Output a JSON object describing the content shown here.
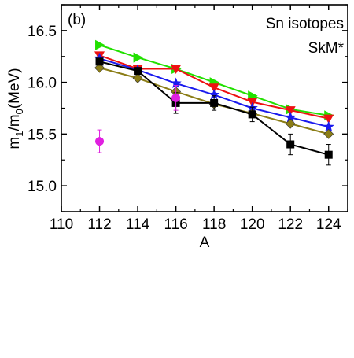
{
  "chart_data": {
    "type": "line",
    "panel_label": "(b)",
    "annotations": [
      "Sn isotopes",
      "SkM*"
    ],
    "xlabel": "A",
    "ylabel_main": "m",
    "ylabel_sub1": "1",
    "ylabel_mid": "/m",
    "ylabel_sub0": "0",
    "ylabel_unit": "(MeV)",
    "xlim": [
      110,
      125
    ],
    "ylim": [
      14.75,
      16.75
    ],
    "xticks": [
      110,
      112,
      114,
      116,
      118,
      120,
      122,
      124
    ],
    "xtick_labels": [
      "110",
      "112",
      "114",
      "116",
      "118",
      "120",
      "122",
      "124"
    ],
    "yticks": [
      15.0,
      15.5,
      16.0,
      16.5
    ],
    "ytick_labels": [
      "15.0",
      "15.5",
      "16.0",
      "16.5"
    ],
    "grid": false,
    "series": [
      {
        "marker": "triangle-right",
        "color": "#22e000",
        "x": [
          112,
          114,
          116,
          118,
          120,
          122,
          124
        ],
        "y": [
          16.36,
          16.24,
          16.13,
          16.0,
          15.87,
          15.74,
          15.68
        ]
      },
      {
        "marker": "triangle-down",
        "color": "#ee1111",
        "x": [
          112,
          114,
          116,
          118,
          120,
          122,
          124
        ],
        "y": [
          16.26,
          16.13,
          16.13,
          15.95,
          15.81,
          15.73,
          15.65
        ]
      },
      {
        "marker": "star",
        "color": "#1a1aee",
        "x": [
          112,
          114,
          116,
          118,
          120,
          122,
          124
        ],
        "y": [
          16.23,
          16.12,
          15.99,
          15.88,
          15.75,
          15.66,
          15.57
        ]
      },
      {
        "marker": "diamond",
        "color": "#8b7d16",
        "x": [
          112,
          114,
          116,
          118,
          120,
          122,
          124
        ],
        "y": [
          16.14,
          16.04,
          15.91,
          15.79,
          15.7,
          15.6,
          15.5
        ]
      },
      {
        "marker": "square",
        "color": "#000000",
        "x": [
          112,
          114,
          116,
          118,
          120,
          122,
          124
        ],
        "y": [
          16.2,
          16.11,
          15.8,
          15.8,
          15.69,
          15.4,
          15.3
        ],
        "err": [
          0.0,
          0.0,
          0.1,
          0.07,
          0.07,
          0.1,
          0.1
        ]
      },
      {
        "marker": "circle",
        "color": "#e020e0",
        "connected": false,
        "x": [
          112,
          116
        ],
        "y": [
          15.43,
          15.85
        ],
        "err": [
          0.11,
          0.12
        ]
      }
    ]
  }
}
